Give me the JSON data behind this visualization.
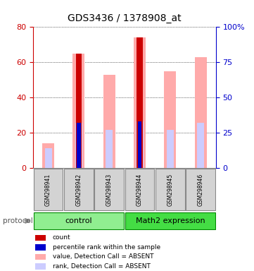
{
  "title": "GDS3436 / 1378908_at",
  "samples": [
    "GSM298941",
    "GSM298942",
    "GSM298943",
    "GSM298944",
    "GSM298945",
    "GSM298946"
  ],
  "groups": [
    "control",
    "control",
    "control",
    "Math2 expression",
    "Math2 expression",
    "Math2 expression"
  ],
  "group_colors": [
    "#90ee90",
    "#90ee90",
    "#90ee90",
    "#00cc00",
    "#00cc00",
    "#00cc00"
  ],
  "group_labels": [
    "control",
    "Math2 expression"
  ],
  "group_label_colors": [
    "#90ee90",
    "#00cc00"
  ],
  "count_values": [
    0,
    65,
    0,
    74,
    0,
    0
  ],
  "percentile_rank_values": [
    0,
    32,
    0,
    33,
    0,
    0
  ],
  "absent_value_values": [
    14,
    65,
    53,
    74,
    55,
    63
  ],
  "absent_rank_values": [
    14,
    32,
    27,
    33,
    27,
    32
  ],
  "has_count": [
    false,
    true,
    false,
    true,
    false,
    false
  ],
  "has_percentile": [
    false,
    true,
    false,
    true,
    false,
    false
  ],
  "ylim_left": [
    0,
    80
  ],
  "ylim_right": [
    0,
    100
  ],
  "yticks_left": [
    0,
    20,
    40,
    60,
    80
  ],
  "yticks_right": [
    0,
    25,
    50,
    75,
    100
  ],
  "left_axis_color": "#cc0000",
  "right_axis_color": "#0000cc",
  "bar_width": 0.18,
  "absent_value_color": "#ffaaaa",
  "absent_rank_color": "#ccccff",
  "count_color": "#cc0000",
  "percentile_color": "#0000cc",
  "background_color": "#ffffff",
  "plot_bg_color": "#ffffff",
  "grid_color": "#000000",
  "label_fontsize": 7,
  "title_fontsize": 10
}
